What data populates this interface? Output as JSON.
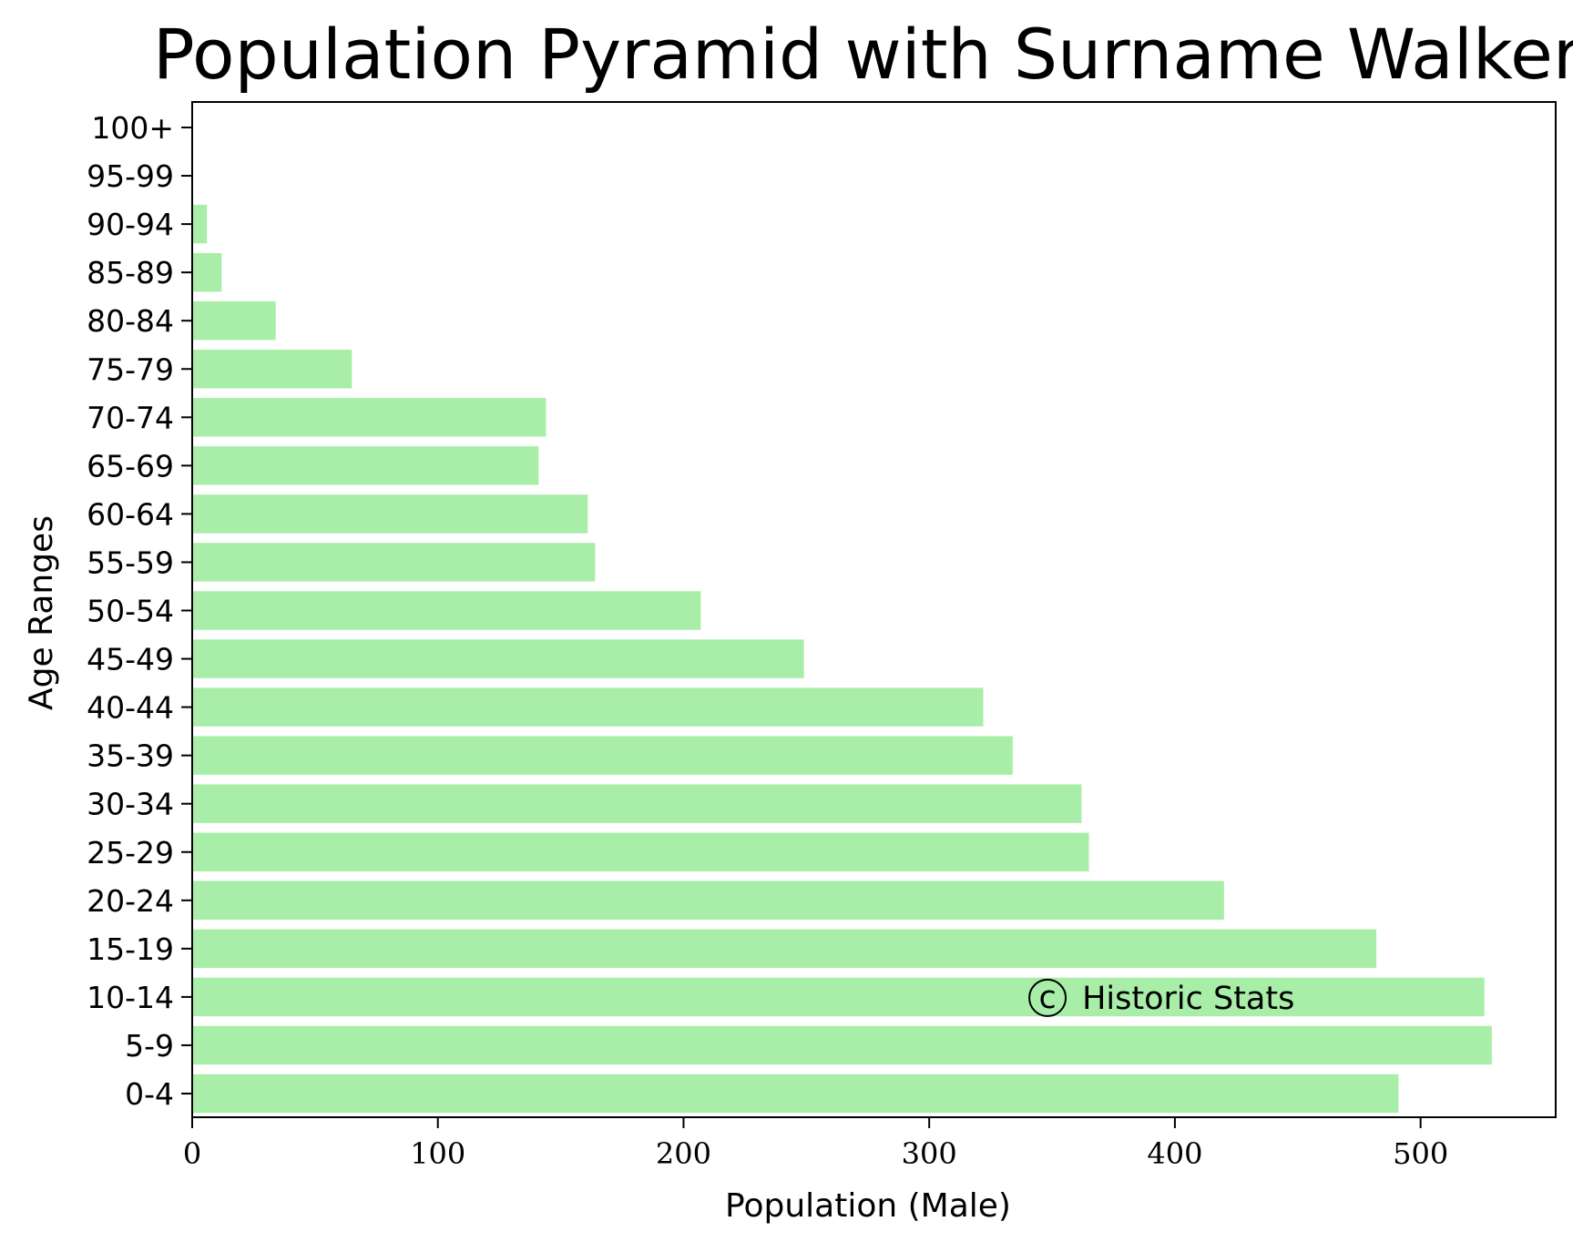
{
  "chart_data": {
    "type": "bar",
    "orientation": "horizontal",
    "title": "Population Pyramid with Surname Walker",
    "xlabel": "Population (Male)",
    "ylabel": "Age Ranges",
    "categories": [
      "0-4",
      "5-9",
      "10-14",
      "15-19",
      "20-24",
      "25-29",
      "30-34",
      "35-39",
      "40-44",
      "45-49",
      "50-54",
      "55-59",
      "60-64",
      "65-69",
      "70-74",
      "75-79",
      "80-84",
      "85-89",
      "90-94",
      "95-99",
      "100+"
    ],
    "series": [
      {
        "values": [
          491,
          529,
          526,
          482,
          420,
          365,
          362,
          334,
          322,
          249,
          207,
          164,
          161,
          141,
          144,
          65,
          34,
          12,
          6,
          0,
          0
        ]
      }
    ],
    "xlim": [
      0,
      555
    ],
    "xticks": [
      0,
      100,
      200,
      300,
      400,
      500
    ],
    "grid": false,
    "bar_color": "#a8eea8",
    "annotation": {
      "symbol": "c",
      "text": "Historic Stats",
      "x": 340,
      "category": "10-14"
    }
  }
}
